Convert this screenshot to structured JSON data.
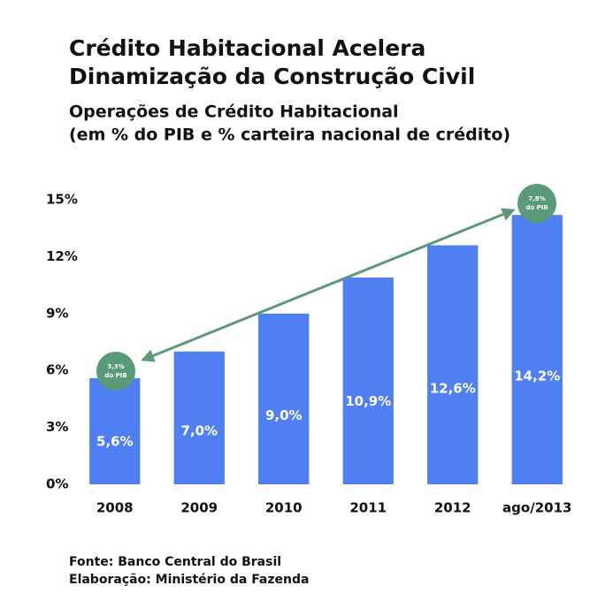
{
  "chart_data": {
    "type": "bar",
    "title": [
      "Crédito Habitacional Acelera",
      "Dinamização da Construção Civil"
    ],
    "subtitle": [
      "Operações de Crédito Habitacional",
      "(em % do PIB e % carteira nacional de crédito)"
    ],
    "categories": [
      "2008",
      "2009",
      "2010",
      "2011",
      "2012",
      "ago/2013"
    ],
    "values": [
      5.6,
      7.0,
      9.0,
      10.9,
      12.6,
      14.2
    ],
    "value_labels": [
      "5,6%",
      "7,0%",
      "9,0%",
      "10,9%",
      "12,6%",
      "14,2%"
    ],
    "color": "#4f7ff3",
    "ylim": [
      0,
      15
    ],
    "yticks": [
      {
        "value": 0,
        "label": "0%"
      },
      {
        "value": 3,
        "label": "3%"
      },
      {
        "value": 6,
        "label": "6%"
      },
      {
        "value": 9,
        "label": "9%"
      },
      {
        "value": 12,
        "label": "12%"
      },
      {
        "value": 15,
        "label": "15%"
      }
    ],
    "grid": false,
    "annotations": [
      {
        "text": [
          "3,3%",
          "do PIB"
        ]
      },
      {
        "text": [
          "7,8%",
          "do PIB"
        ]
      }
    ],
    "notes": [
      "Fonte: Banco Central do Brasil",
      "Elaboração: Ministério da Fazenda"
    ]
  }
}
